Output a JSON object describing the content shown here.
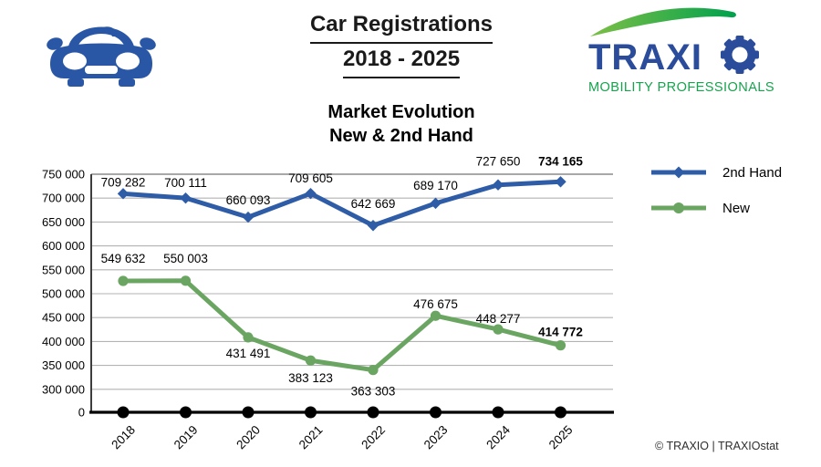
{
  "header": {
    "title_line1": "Car Registrations",
    "title_line2": "2018 - 2025",
    "logo": {
      "brand_letters": "TRAXI",
      "tagline": "MOBILITY PROFESSIONALS",
      "navy": "#2b4b9b",
      "green": "#18a24f",
      "swoosh_green_light": "#7dbf45",
      "swoosh_green_dark": "#00a14e"
    }
  },
  "chart": {
    "title_line1": "Market Evolution",
    "title_line2": "New & 2nd Hand"
  },
  "chart_data": {
    "type": "line",
    "title": "Market Evolution New & 2nd Hand",
    "categories": [
      "2018",
      "2019",
      "2020",
      "2021",
      "2022",
      "2023",
      "2024",
      "2025"
    ],
    "series": [
      {
        "name": "2nd Hand",
        "color": "#2e5ca6",
        "marker": "diamond",
        "values": [
          709282,
          700111,
          660093,
          709605,
          642669,
          689170,
          727650,
          734165
        ],
        "point_labels": [
          "709 282",
          "700 111",
          "660 093",
          "709 605",
          "642 669",
          "689 170",
          "727 650",
          "734 165"
        ],
        "bold_label_index": 7
      },
      {
        "name": "New",
        "color": "#6aa562",
        "marker": "circle",
        "values": [
          549632,
          550003,
          431491,
          383123,
          363303,
          476675,
          448277,
          414772
        ],
        "point_labels": [
          "549 632",
          "550 003",
          "431 491",
          "383 123",
          "363 303",
          "476 675",
          "448 277",
          "414 772"
        ],
        "bold_label_index": 7
      },
      {
        "name": "baseline-zero",
        "color": "#000000",
        "marker": "circle",
        "values": [
          0,
          0,
          0,
          0,
          0,
          0,
          0,
          0
        ],
        "point_labels": [
          "",
          "",
          "",
          "",
          "",
          "",
          "",
          ""
        ],
        "in_legend": false
      }
    ],
    "y_axis": {
      "ticks": [
        "750 000",
        "700 000",
        "650 000",
        "600 000",
        "550 000",
        "500 000",
        "450 000",
        "400 000",
        "350 000",
        "300 000"
      ],
      "tick_values": [
        750000,
        700000,
        650000,
        600000,
        550000,
        500000,
        450000,
        400000,
        350000,
        300000
      ],
      "zero_label": "0",
      "scale_break": true,
      "grid_color": "#b3b3b3",
      "axis_color": "#000000"
    },
    "legend_position": "right",
    "grid": true
  },
  "footer": {
    "copyright": "© TRAXIO | TRAXIOstat"
  }
}
